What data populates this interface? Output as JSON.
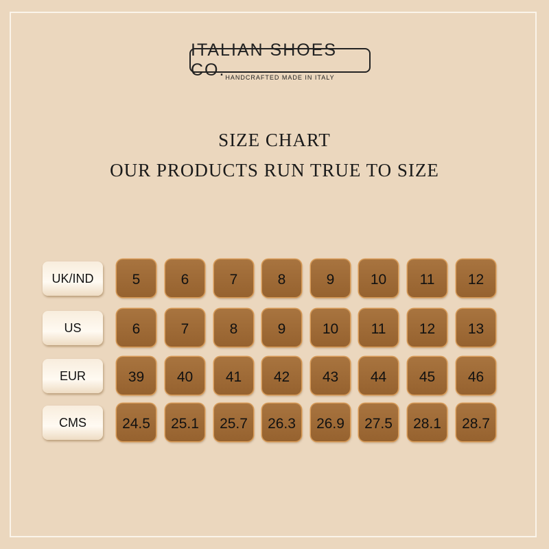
{
  "brand": {
    "name": "ITALIAN SHOES CO.",
    "tagline": "HANDCRAFTED MADE IN ITALY"
  },
  "heading": {
    "title": "SIZE CHART",
    "subtitle": "OUR PRODUCTS RUN TRUE TO SIZE"
  },
  "rows": [
    {
      "label": "UK/IND",
      "values": [
        "5",
        "6",
        "7",
        "8",
        "9",
        "10",
        "11",
        "12"
      ]
    },
    {
      "label": "US",
      "values": [
        "6",
        "7",
        "8",
        "9",
        "10",
        "11",
        "12",
        "13"
      ]
    },
    {
      "label": "EUR",
      "values": [
        "39",
        "40",
        "41",
        "42",
        "43",
        "44",
        "45",
        "46"
      ]
    },
    {
      "label": "CMS",
      "values": [
        "24.5",
        "25.1",
        "25.7",
        "26.3",
        "26.9",
        "27.5",
        "28.1",
        "28.7"
      ]
    }
  ],
  "colors": {
    "background": "#ebd7be",
    "cell": "#9e6a36",
    "label": "#fbf1e2"
  }
}
